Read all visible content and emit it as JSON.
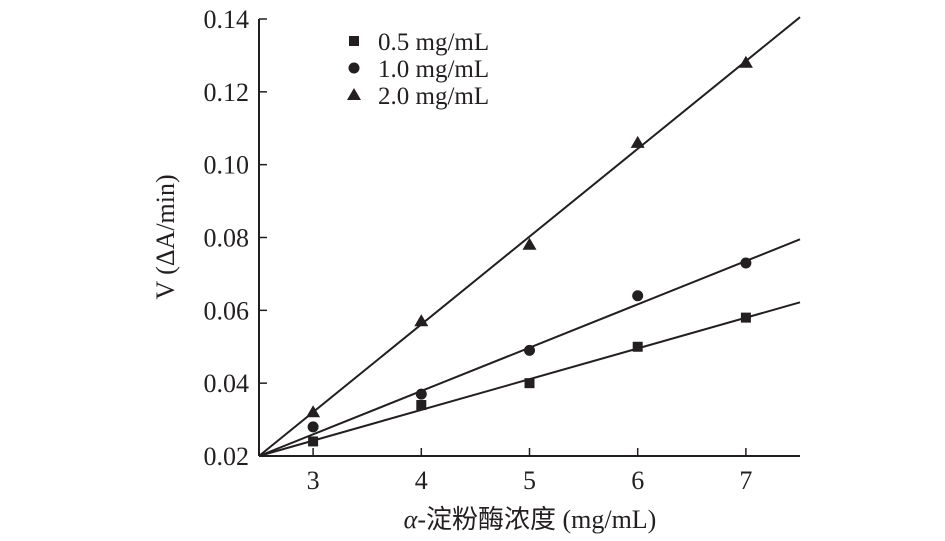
{
  "chart_data": {
    "type": "scatter",
    "xlabel": "α-淀粉酶浓度 (mg/mL)",
    "xlabel_prefix": "α",
    "xlabel_rest": "-淀粉酶浓度 (mg/mL)",
    "ylabel": "V (ΔA/min)",
    "xlim": [
      2.5,
      7.5
    ],
    "ylim": [
      0.02,
      0.14
    ],
    "xticks": [
      3,
      4,
      5,
      6,
      7
    ],
    "xtick_labels": [
      "3",
      "4",
      "5",
      "6",
      "7"
    ],
    "yticks": [
      0.02,
      0.04,
      0.06,
      0.08,
      0.1,
      0.12,
      0.14
    ],
    "ytick_labels": [
      "0.02",
      "0.04",
      "0.06",
      "0.08",
      "0.10",
      "0.12",
      "0.14"
    ],
    "grid": false,
    "legend_position": "top-left",
    "series": [
      {
        "name": "0.5 mg/mL",
        "marker": "square",
        "x": [
          3,
          4,
          5,
          6,
          7
        ],
        "y": [
          0.024,
          0.034,
          0.04,
          0.05,
          0.058
        ],
        "fit_line": {
          "x": [
            2.5,
            7.5
          ],
          "y": [
            0.02,
            0.0622
          ]
        }
      },
      {
        "name": "1.0 mg/mL",
        "marker": "circle",
        "x": [
          3,
          4,
          5,
          6,
          7
        ],
        "y": [
          0.028,
          0.037,
          0.049,
          0.064,
          0.073
        ],
        "fit_line": {
          "x": [
            2.5,
            7.5
          ],
          "y": [
            0.02,
            0.0795
          ]
        }
      },
      {
        "name": "2.0 mg/mL",
        "marker": "triangle",
        "x": [
          3,
          4,
          5,
          6,
          7
        ],
        "y": [
          0.032,
          0.057,
          0.078,
          0.106,
          0.128
        ],
        "fit_line": {
          "x": [
            2.5,
            7.5
          ],
          "y": [
            0.02,
            0.1405
          ]
        }
      }
    ]
  }
}
